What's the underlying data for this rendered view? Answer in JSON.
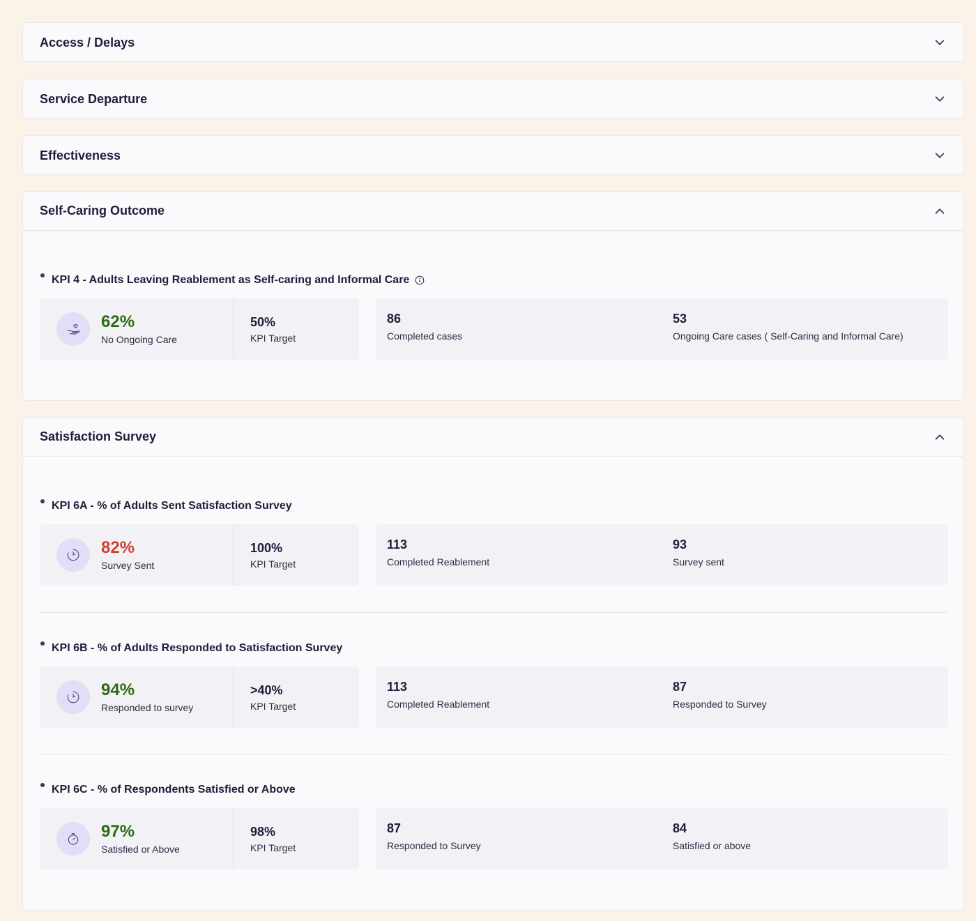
{
  "sections": {
    "access": {
      "title": "Access / Delays"
    },
    "departure": {
      "title": "Service Departure"
    },
    "effectiveness": {
      "title": "Effectiveness"
    },
    "selfcaring": {
      "title": "Self-Caring Outcome",
      "kpi4": {
        "title": "KPI 4 - Adults Leaving Reablement as Self-caring and Informal Care",
        "pct": "62%",
        "pct_label": "No Ongoing Care",
        "target": "50%",
        "target_label": "KPI Target",
        "stat1_val": "86",
        "stat1_label": "Completed cases",
        "stat2_val": "53",
        "stat2_label": "Ongoing Care cases ( Self-Caring and Informal Care)"
      }
    },
    "satisfaction": {
      "title": "Satisfaction Survey",
      "kpi6a": {
        "title": "KPI 6A - % of Adults Sent Satisfaction Survey",
        "pct": "82%",
        "pct_label": "Survey Sent",
        "target": "100%",
        "target_label": "KPI Target",
        "stat1_val": "113",
        "stat1_label": "Completed Reablement",
        "stat2_val": "93",
        "stat2_label": "Survey sent"
      },
      "kpi6b": {
        "title": "KPI 6B - % of Adults Responded to Satisfaction Survey",
        "pct": "94%",
        "pct_label": "Responded to survey",
        "target": ">40%",
        "target_label": "KPI Target",
        "stat1_val": "113",
        "stat1_label": "Completed Reablement",
        "stat2_val": "87",
        "stat2_label": "Responded to Survey"
      },
      "kpi6c": {
        "title": "KPI 6C - % of Respondents Satisfied or Above",
        "pct": "97%",
        "pct_label": "Satisfied or Above",
        "target": "98%",
        "target_label": "KPI Target",
        "stat1_val": "87",
        "stat1_label": "Responded to Survey",
        "stat2_val": "84",
        "stat2_label": "Satisfied or above"
      }
    }
  },
  "icons": {
    "chevron_collapsed": "chevron-down-icon",
    "chevron_expanded": "chevron-up-icon",
    "kpi4_icon": "hand-care-icon",
    "kpi6_icon": "clock-icon",
    "kpi6c_icon": "stopwatch-icon",
    "info": "info-icon"
  },
  "colors": {
    "good": "#2e6b12",
    "bad": "#d0412f",
    "accent_circle": "#e3def7"
  }
}
